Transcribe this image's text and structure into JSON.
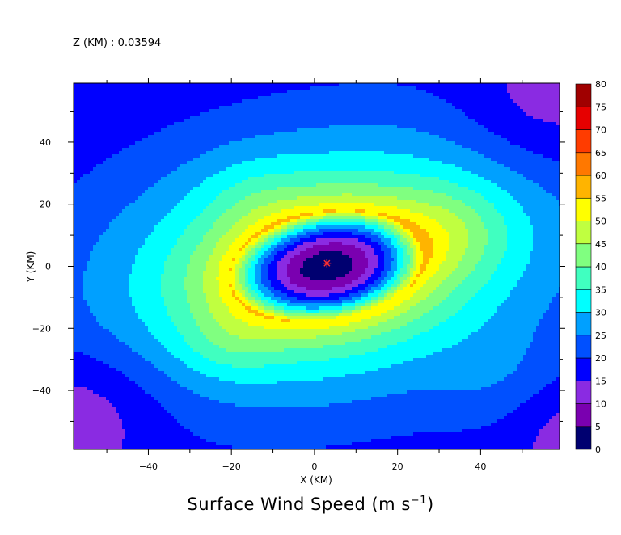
{
  "header": {
    "z_label": "Z (KM) : 0.03594"
  },
  "chart_data": {
    "type": "heatmap",
    "title": "Surface Wind Speed (m s",
    "title_superscript": "−1",
    "title_suffix": ")",
    "xlabel": "X (KM)",
    "ylabel": "Y (KM)",
    "xlim": [
      -58,
      59
    ],
    "ylim": [
      -59,
      59
    ],
    "x_ticks": [
      -40,
      -20,
      0,
      20,
      40
    ],
    "y_ticks": [
      -40,
      -20,
      0,
      20,
      40
    ],
    "minor_step": 10,
    "colorbar": {
      "levels": [
        0,
        5,
        10,
        15,
        20,
        25,
        30,
        35,
        40,
        45,
        50,
        55,
        60,
        65,
        70,
        75,
        80
      ],
      "colors": [
        "#000070",
        "#7a00b0",
        "#8a2be2",
        "#0000ff",
        "#0050ff",
        "#00a0ff",
        "#00ffff",
        "#40ffc0",
        "#80ff80",
        "#c0ff40",
        "#ffff00",
        "#ffb400",
        "#ff7800",
        "#ff3c00",
        "#e60000",
        "#a00000"
      ]
    },
    "center_marker": {
      "x": 3,
      "y": 1,
      "color": "#ff3030"
    },
    "field": {
      "center": [
        3,
        0
      ],
      "rotation_deg": 18,
      "aspect": 0.72,
      "rmw": 24,
      "vmax": 55,
      "eye_min": 2,
      "outer_decay": 0.85,
      "jets": [
        {
          "x": 34,
          "y": 13,
          "amp": 6,
          "sigma": 10
        },
        {
          "x": -15,
          "y": 23,
          "amp": 4,
          "sigma": 10
        },
        {
          "x": -21,
          "y": -25,
          "amp": 5,
          "sigma": 8
        },
        {
          "x": 48,
          "y": -40,
          "amp": 5,
          "sigma": 12
        }
      ],
      "corner_low": [
        {
          "x": -55,
          "y": -45,
          "amp": -7,
          "sigma": 14
        },
        {
          "x": 55,
          "y": 50,
          "amp": -6,
          "sigma": 14
        },
        {
          "x": 58,
          "y": -48,
          "amp": -5,
          "sigma": 10
        }
      ]
    }
  }
}
